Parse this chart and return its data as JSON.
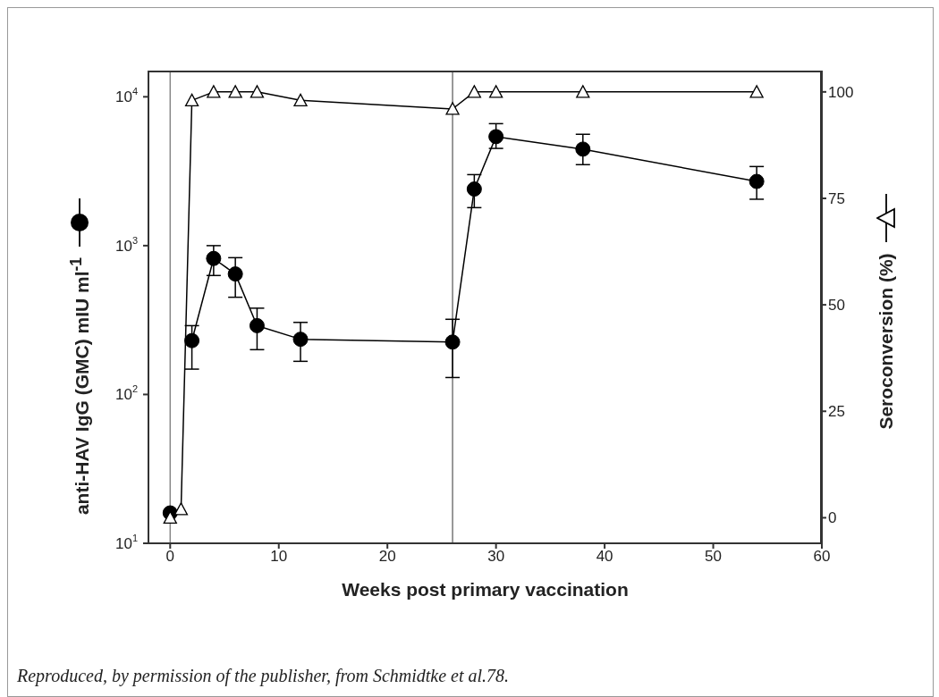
{
  "chart_data": {
    "type": "line",
    "xlabel": "Weeks post primary vaccination",
    "ylabel": "anti-HAV IgG (GMC) mIU ml$^{-1}$",
    "y2label": "Seroconversion (%)",
    "annotations": [
      "Reproduced, by permission of the publisher, from Schmidtke et al.78."
    ],
    "log": "y",
    "xlim": [
      -2,
      60
    ],
    "xticks": [
      0,
      10,
      20,
      30,
      40,
      50,
      60
    ],
    "ylim": [
      10,
      15000
    ],
    "yticks": [
      {
        "value": 10,
        "label": "10$^{1}$"
      },
      {
        "value": 100,
        "label": "10$^{2}$"
      },
      {
        "value": 1000,
        "label": "10$^{3}$"
      },
      {
        "value": 10000,
        "label": "10$^{4}$"
      }
    ],
    "y2lim": [
      -6,
      105
    ],
    "y2ticks": [
      0,
      25,
      50,
      75,
      100
    ],
    "ref_lines": [
      {
        "axis": "x",
        "value": 0,
        "color": "#888888"
      },
      {
        "axis": "x",
        "value": 26,
        "color": "#777777"
      }
    ],
    "series": [
      {
        "color": "#000000",
        "marker": "circle",
        "x": [
          0,
          1,
          2,
          4,
          6,
          8,
          12,
          26,
          28,
          30,
          38,
          54
        ],
        "values": [
          16,
          null,
          230,
          820,
          645,
          290,
          235,
          225,
          2400,
          5400,
          4450,
          2700
        ],
        "errors": [
          null,
          null,
          [
            148,
            290
          ],
          [
            630,
            1000
          ],
          [
            450,
            830
          ],
          [
            200,
            380
          ],
          [
            167,
            305
          ],
          [
            130,
            320
          ],
          [
            1800,
            3000
          ],
          [
            4500,
            6600
          ],
          [
            3500,
            5600
          ],
          [
            2050,
            3400
          ]
        ]
      },
      {
        "color": "#000000",
        "marker": "triangle",
        "axis": "y2",
        "x": [
          0,
          1,
          2,
          4,
          6,
          8,
          12,
          26,
          28,
          30,
          38,
          54
        ],
        "values": [
          0,
          2,
          98,
          100,
          100,
          100,
          98,
          96,
          100,
          100,
          100,
          100
        ]
      }
    ]
  }
}
